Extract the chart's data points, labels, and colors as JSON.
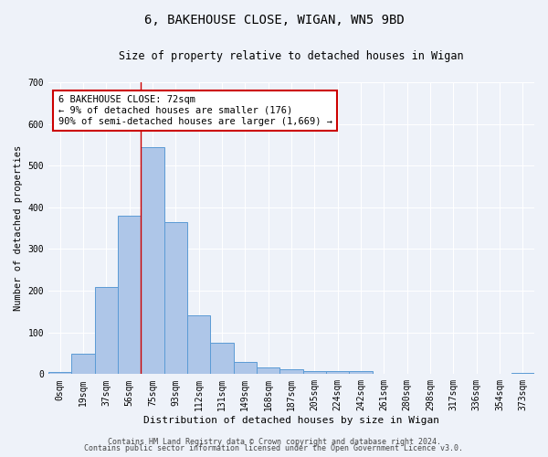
{
  "title": "6, BAKEHOUSE CLOSE, WIGAN, WN5 9BD",
  "subtitle": "Size of property relative to detached houses in Wigan",
  "xlabel": "Distribution of detached houses by size in Wigan",
  "ylabel": "Number of detached properties",
  "footer_line1": "Contains HM Land Registry data © Crown copyright and database right 2024.",
  "footer_line2": "Contains public sector information licensed under the Open Government Licence v3.0.",
  "annotation_title": "6 BAKEHOUSE CLOSE: 72sqm",
  "annotation_line1": "← 9% of detached houses are smaller (176)",
  "annotation_line2": "90% of semi-detached houses are larger (1,669) →",
  "bar_labels": [
    "0sqm",
    "19sqm",
    "37sqm",
    "56sqm",
    "75sqm",
    "93sqm",
    "112sqm",
    "131sqm",
    "149sqm",
    "168sqm",
    "187sqm",
    "205sqm",
    "224sqm",
    "242sqm",
    "261sqm",
    "280sqm",
    "298sqm",
    "317sqm",
    "336sqm",
    "354sqm",
    "373sqm"
  ],
  "bar_values": [
    5,
    50,
    210,
    380,
    545,
    365,
    140,
    75,
    30,
    15,
    12,
    8,
    8,
    8,
    0,
    0,
    0,
    0,
    0,
    0,
    3
  ],
  "bar_color": "#aec6e8",
  "bar_edge_color": "#5b9bd5",
  "vline_x_index": 3.5,
  "vline_color": "#cc0000",
  "annotation_box_edge_color": "#cc0000",
  "background_color": "#eef2f9",
  "grid_color": "#ffffff",
  "ylim": [
    0,
    700
  ],
  "yticks": [
    0,
    100,
    200,
    300,
    400,
    500,
    600,
    700
  ],
  "title_fontsize": 10,
  "subtitle_fontsize": 8.5,
  "ylabel_fontsize": 7.5,
  "xlabel_fontsize": 8,
  "tick_fontsize": 7,
  "annotation_fontsize": 7.5,
  "footer_fontsize": 6
}
